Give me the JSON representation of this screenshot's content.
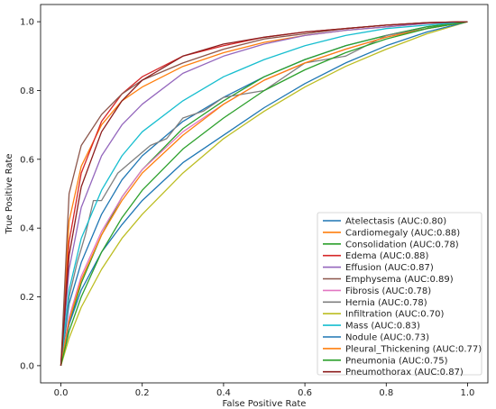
{
  "chart_data": {
    "type": "line",
    "title": "",
    "xlabel": "False Positive Rate",
    "ylabel": "True Positive Rate",
    "xlim": [
      -0.05,
      1.05
    ],
    "ylim": [
      -0.05,
      1.05
    ],
    "xticks": [
      0.0,
      0.2,
      0.4,
      0.6,
      0.8,
      1.0
    ],
    "yticks": [
      0.0,
      0.2,
      0.4,
      0.6,
      0.8,
      1.0
    ],
    "xtick_labels": [
      "0.0",
      "0.2",
      "0.4",
      "0.6",
      "0.8",
      "1.0"
    ],
    "ytick_labels": [
      "0.0",
      "0.2",
      "0.4",
      "0.6",
      "0.8",
      "1.0"
    ],
    "grid": false,
    "legend_position": "lower-right",
    "diagonal_reference": false,
    "series": [
      {
        "name": "Atelectasis (AUC:0.80)",
        "color": "#1f77b4",
        "x": [
          0,
          0.02,
          0.05,
          0.1,
          0.15,
          0.2,
          0.3,
          0.4,
          0.5,
          0.6,
          0.7,
          0.8,
          0.9,
          1.0
        ],
        "y": [
          0,
          0.18,
          0.3,
          0.44,
          0.54,
          0.61,
          0.71,
          0.78,
          0.84,
          0.89,
          0.93,
          0.96,
          0.985,
          1.0
        ]
      },
      {
        "name": "Cardiomegaly (AUC:0.88)",
        "color": "#ff7f0e",
        "x": [
          0,
          0.02,
          0.05,
          0.1,
          0.15,
          0.2,
          0.3,
          0.4,
          0.5,
          0.6,
          0.7,
          0.8,
          0.9,
          1.0
        ],
        "y": [
          0,
          0.42,
          0.58,
          0.7,
          0.77,
          0.81,
          0.87,
          0.91,
          0.94,
          0.96,
          0.975,
          0.985,
          0.995,
          1.0
        ]
      },
      {
        "name": "Consolidation (AUC:0.78)",
        "color": "#2ca02c",
        "x": [
          0,
          0.02,
          0.05,
          0.1,
          0.15,
          0.2,
          0.3,
          0.4,
          0.5,
          0.6,
          0.7,
          0.8,
          0.9,
          1.0
        ],
        "y": [
          0,
          0.12,
          0.24,
          0.38,
          0.49,
          0.57,
          0.69,
          0.77,
          0.84,
          0.89,
          0.93,
          0.96,
          0.985,
          1.0
        ]
      },
      {
        "name": "Edema (AUC:0.88)",
        "color": "#d62728",
        "x": [
          0,
          0.02,
          0.05,
          0.1,
          0.15,
          0.2,
          0.3,
          0.4,
          0.5,
          0.6,
          0.7,
          0.8,
          0.9,
          1.0
        ],
        "y": [
          0,
          0.36,
          0.56,
          0.71,
          0.79,
          0.84,
          0.9,
          0.93,
          0.955,
          0.97,
          0.98,
          0.99,
          0.997,
          1.0
        ]
      },
      {
        "name": "Effusion (AUC:0.87)",
        "color": "#9467bd",
        "x": [
          0,
          0.02,
          0.05,
          0.1,
          0.15,
          0.2,
          0.3,
          0.4,
          0.5,
          0.6,
          0.7,
          0.8,
          0.9,
          1.0
        ],
        "y": [
          0,
          0.28,
          0.46,
          0.61,
          0.7,
          0.76,
          0.85,
          0.9,
          0.935,
          0.96,
          0.975,
          0.985,
          0.995,
          1.0
        ]
      },
      {
        "name": "Emphysema (AUC:0.89)",
        "color": "#8c564b",
        "x": [
          0,
          0.02,
          0.05,
          0.1,
          0.15,
          0.2,
          0.3,
          0.4,
          0.5,
          0.6,
          0.7,
          0.8,
          0.9,
          1.0
        ],
        "y": [
          0,
          0.5,
          0.64,
          0.73,
          0.79,
          0.83,
          0.88,
          0.92,
          0.95,
          0.965,
          0.98,
          0.99,
          0.997,
          1.0
        ]
      },
      {
        "name": "Fibrosis (AUC:0.78)",
        "color": "#e377c2",
        "x": [
          0,
          0.02,
          0.05,
          0.1,
          0.15,
          0.2,
          0.3,
          0.4,
          0.5,
          0.6,
          0.7,
          0.8,
          0.9,
          1.0
        ],
        "y": [
          0,
          0.14,
          0.26,
          0.39,
          0.49,
          0.57,
          0.68,
          0.76,
          0.83,
          0.88,
          0.92,
          0.955,
          0.98,
          1.0
        ]
      },
      {
        "name": "Hernia (AUC:0.78)",
        "color": "#7f7f7f",
        "x": [
          0,
          0.02,
          0.04,
          0.06,
          0.08,
          0.1,
          0.14,
          0.18,
          0.22,
          0.26,
          0.3,
          0.35,
          0.4,
          0.5,
          0.6,
          0.7,
          0.8,
          0.9,
          1.0
        ],
        "y": [
          0,
          0.2,
          0.3,
          0.38,
          0.48,
          0.48,
          0.56,
          0.6,
          0.64,
          0.66,
          0.72,
          0.74,
          0.78,
          0.8,
          0.88,
          0.9,
          0.96,
          0.98,
          1.0
        ]
      },
      {
        "name": "Infiltration (AUC:0.70)",
        "color": "#bcbd22",
        "x": [
          0,
          0.02,
          0.05,
          0.1,
          0.15,
          0.2,
          0.3,
          0.4,
          0.5,
          0.6,
          0.7,
          0.8,
          0.9,
          1.0
        ],
        "y": [
          0,
          0.08,
          0.17,
          0.28,
          0.37,
          0.44,
          0.56,
          0.66,
          0.74,
          0.81,
          0.87,
          0.92,
          0.965,
          1.0
        ]
      },
      {
        "name": "Mass (AUC:0.83)",
        "color": "#17becf",
        "x": [
          0,
          0.02,
          0.05,
          0.1,
          0.15,
          0.2,
          0.3,
          0.4,
          0.5,
          0.6,
          0.7,
          0.8,
          0.9,
          1.0
        ],
        "y": [
          0,
          0.22,
          0.37,
          0.51,
          0.61,
          0.68,
          0.77,
          0.84,
          0.89,
          0.93,
          0.96,
          0.98,
          0.99,
          1.0
        ]
      },
      {
        "name": "Nodule (AUC:0.73)",
        "color": "#1f77b4",
        "x": [
          0,
          0.02,
          0.05,
          0.1,
          0.15,
          0.2,
          0.3,
          0.4,
          0.5,
          0.6,
          0.7,
          0.8,
          0.9,
          1.0
        ],
        "y": [
          0,
          0.12,
          0.22,
          0.33,
          0.41,
          0.48,
          0.59,
          0.67,
          0.75,
          0.82,
          0.88,
          0.93,
          0.97,
          1.0
        ]
      },
      {
        "name": "Pleural_Thickening (AUC:0.77)",
        "color": "#ff7f0e",
        "x": [
          0,
          0.02,
          0.05,
          0.1,
          0.15,
          0.2,
          0.3,
          0.4,
          0.5,
          0.6,
          0.7,
          0.8,
          0.9,
          1.0
        ],
        "y": [
          0,
          0.13,
          0.25,
          0.38,
          0.48,
          0.56,
          0.67,
          0.76,
          0.83,
          0.88,
          0.92,
          0.955,
          0.98,
          1.0
        ]
      },
      {
        "name": "Pneumonia (AUC:0.75)",
        "color": "#2ca02c",
        "x": [
          0,
          0.02,
          0.05,
          0.1,
          0.15,
          0.2,
          0.3,
          0.4,
          0.5,
          0.6,
          0.7,
          0.8,
          0.9,
          1.0
        ],
        "y": [
          0,
          0.1,
          0.2,
          0.33,
          0.43,
          0.51,
          0.63,
          0.72,
          0.8,
          0.86,
          0.91,
          0.95,
          0.98,
          1.0
        ]
      },
      {
        "name": "Pneumothorax (AUC:0.87)",
        "color": "#8c1d1d",
        "x": [
          0,
          0.02,
          0.05,
          0.1,
          0.15,
          0.2,
          0.3,
          0.4,
          0.5,
          0.6,
          0.7,
          0.8,
          0.9,
          1.0
        ],
        "y": [
          0,
          0.32,
          0.52,
          0.68,
          0.77,
          0.83,
          0.9,
          0.935,
          0.955,
          0.97,
          0.98,
          0.99,
          0.997,
          1.0
        ]
      }
    ]
  }
}
